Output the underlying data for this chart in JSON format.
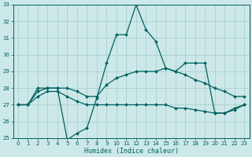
{
  "xlabel": "Humidex (Indice chaleur)",
  "xlim": [
    -0.5,
    23.5
  ],
  "ylim": [
    25,
    33
  ],
  "yticks": [
    25,
    26,
    27,
    28,
    29,
    30,
    31,
    32,
    33
  ],
  "xticks": [
    0,
    1,
    2,
    3,
    4,
    5,
    6,
    7,
    8,
    9,
    10,
    11,
    12,
    13,
    14,
    15,
    16,
    17,
    18,
    19,
    20,
    21,
    22,
    23
  ],
  "bg_color": "#cde8e8",
  "grid_color": "#a0cccc",
  "line_color": "#006060",
  "lines": [
    [
      27.0,
      27.0,
      28.0,
      28.0,
      28.0,
      24.9,
      25.3,
      25.6,
      27.4,
      29.5,
      31.2,
      31.2,
      33.0,
      31.5,
      30.8,
      29.2,
      29.0,
      29.5,
      29.5,
      29.5,
      26.5,
      26.5,
      26.8,
      27.0
    ],
    [
      27.0,
      27.0,
      27.8,
      28.0,
      28.0,
      28.0,
      27.8,
      27.5,
      27.5,
      28.2,
      28.6,
      28.8,
      29.0,
      29.0,
      29.0,
      29.2,
      29.0,
      28.8,
      28.5,
      28.3,
      28.0,
      27.8,
      27.5,
      27.5
    ],
    [
      27.0,
      27.0,
      27.5,
      27.8,
      27.8,
      27.5,
      27.2,
      27.0,
      27.0,
      27.0,
      27.0,
      27.0,
      27.0,
      27.0,
      27.0,
      27.0,
      26.8,
      26.8,
      26.7,
      26.6,
      26.5,
      26.5,
      26.7,
      27.0
    ]
  ]
}
